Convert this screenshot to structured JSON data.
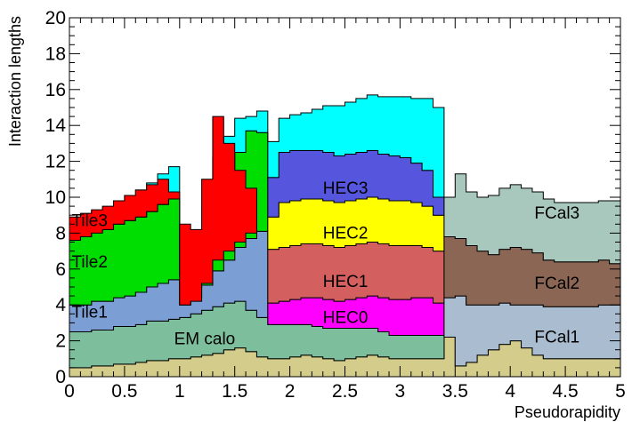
{
  "chart_data": {
    "type": "area",
    "title": "",
    "xlabel": "Pseudorapidity",
    "ylabel": "Interaction lengths",
    "xlim": [
      0,
      5
    ],
    "ylim": [
      0,
      20
    ],
    "x_ticks": [
      "0",
      "0.5",
      "1",
      "1.5",
      "2",
      "2.5",
      "3",
      "3.5",
      "4",
      "4.5",
      "5"
    ],
    "y_ticks": [
      "0",
      "2",
      "4",
      "6",
      "8",
      "10",
      "12",
      "14",
      "16",
      "18",
      "20"
    ],
    "grid": false,
    "legend": "none",
    "bin_width": 0.1,
    "series": [
      {
        "name": "Tile3",
        "color": "#ff0000",
        "base": [
          7.6,
          7.8,
          8.0,
          8.2,
          8.5,
          8.7,
          8.9,
          9.2,
          9.6,
          9.9,
          4.0,
          4.2,
          5.2,
          6.5,
          7.0,
          7.5,
          8.0,
          8.2,
          8.2,
          8.2,
          8.2,
          8.2,
          8.2,
          8.2,
          8.2,
          8.2,
          8.2,
          8.2,
          8.2,
          8.2,
          8.2,
          8.2,
          8.2,
          8.2,
          8.2,
          8.2,
          8.2,
          8.2,
          8.2,
          8.2,
          8.2,
          8.2,
          8.2,
          8.2,
          8.2,
          8.2,
          8.2,
          8.2,
          8.2,
          8.2
        ],
        "top": [
          8.9,
          9.1,
          9.3,
          9.5,
          9.8,
          10.1,
          10.4,
          10.7,
          11.0,
          10.3,
          8.5,
          8.2,
          11.0,
          14.5,
          13.0,
          11.5,
          10.5,
          8.2,
          8.2,
          8.2,
          8.2,
          8.2,
          8.2,
          8.2,
          8.2,
          8.2,
          8.2,
          8.2,
          8.2,
          8.2,
          8.2,
          8.2,
          8.2,
          8.2,
          8.2,
          8.2,
          8.2,
          8.2,
          8.2,
          8.2,
          8.2,
          8.2,
          8.2,
          8.2,
          8.2,
          8.2,
          8.2,
          8.2,
          8.2,
          8.2
        ]
      }
    ],
    "layers": [
      {
        "name": "",
        "color": "#d4cc8a",
        "values": [
          0.5,
          0.5,
          0.6,
          0.6,
          0.7,
          0.7,
          0.8,
          0.9,
          0.9,
          1.0,
          1.0,
          1.1,
          1.2,
          1.3,
          1.5,
          1.6,
          1.4,
          1.1,
          1.0,
          1.0,
          1.1,
          1.2,
          1.1,
          1.0,
          0.9,
          1.0,
          1.1,
          1.2,
          1.1,
          1.0,
          1.0,
          1.0,
          1.0,
          1.0,
          2.2,
          0.6,
          0.8,
          1.2,
          1.5,
          1.8,
          2.0,
          1.6,
          1.2,
          1.0,
          1.0,
          1.0,
          1.0,
          1.0,
          1.0,
          1.0
        ]
      },
      {
        "name": "EM calo",
        "color": "#7dbf9c",
        "values": [
          2.0,
          2.0,
          2.0,
          2.0,
          2.1,
          2.1,
          2.1,
          2.2,
          2.2,
          2.2,
          2.3,
          2.4,
          2.5,
          2.6,
          2.6,
          2.6,
          2.3,
          2.2,
          1.9,
          1.9,
          1.8,
          1.7,
          1.7,
          1.7,
          1.8,
          1.7,
          1.6,
          1.5,
          1.4,
          1.3,
          1.3,
          1.3,
          1.3,
          1.3,
          0.0,
          0.0,
          0.0,
          0.0,
          0.0,
          0.0,
          0.0,
          0.0,
          0.0,
          0.0,
          0.0,
          0.0,
          0.0,
          0.0,
          0.0,
          0.0
        ]
      },
      {
        "name": "Tile1",
        "color": "#7b9fd4",
        "values": [
          1.5,
          1.5,
          1.6,
          1.6,
          1.6,
          1.7,
          1.8,
          1.9,
          2.1,
          2.2,
          0.7,
          0.9,
          1.4,
          2.0,
          2.4,
          3.0,
          4.0,
          4.8,
          0.0,
          0.0,
          0.0,
          0.0,
          0.0,
          0.0,
          0.0,
          0.0,
          0.0,
          0.0,
          0.0,
          0.0,
          0.0,
          0.0,
          0.0,
          0.0,
          0.0,
          0.0,
          0.0,
          0.0,
          0.0,
          0.0,
          0.0,
          0.0,
          0.0,
          0.0,
          0.0,
          0.0,
          0.0,
          0.0,
          0.0,
          0.0
        ]
      },
      {
        "name": "Tile2",
        "color": "#00dd00",
        "values": [
          3.6,
          3.8,
          3.9,
          4.0,
          4.1,
          4.2,
          4.2,
          4.2,
          4.4,
          4.5,
          1.6,
          0.8,
          2.5,
          4.4,
          5.0,
          5.3,
          6.0,
          5.5,
          0.0,
          0.0,
          0.0,
          0.0,
          0.0,
          0.0,
          0.0,
          0.0,
          0.0,
          0.0,
          0.0,
          0.0,
          0.0,
          0.0,
          0.0,
          0.0,
          0.0,
          0.0,
          0.0,
          0.0,
          0.0,
          0.0,
          0.0,
          0.0,
          0.0,
          0.0,
          0.0,
          0.0,
          0.0,
          0.0,
          0.0,
          0.0
        ]
      },
      {
        "name": "HEC0",
        "color": "#ff00ff",
        "values": [
          0,
          0,
          0,
          0,
          0,
          0,
          0,
          0,
          0,
          0,
          0,
          0,
          0,
          0,
          0,
          0,
          0,
          0,
          1.2,
          1.3,
          1.4,
          1.5,
          1.6,
          1.6,
          1.5,
          1.6,
          1.7,
          1.8,
          1.9,
          2.0,
          2.0,
          2.1,
          2.1,
          1.8,
          0,
          0,
          0,
          0,
          0,
          0,
          0,
          0,
          0,
          0,
          0,
          0,
          0,
          0,
          0,
          0
        ]
      },
      {
        "name": "HEC1",
        "color": "#d45f5f",
        "values": [
          0,
          0,
          0,
          0,
          0,
          0,
          0,
          0,
          0,
          0,
          0,
          0,
          0,
          0,
          0,
          0,
          0,
          0,
          3.0,
          3.0,
          3.0,
          3.0,
          3.0,
          3.0,
          3.0,
          3.0,
          3.0,
          3.0,
          3.0,
          3.0,
          3.0,
          2.9,
          2.8,
          2.9,
          0,
          0,
          0,
          0,
          0,
          0,
          0,
          0,
          0,
          0,
          0,
          0,
          0,
          0,
          0,
          0
        ]
      },
      {
        "name": "HEC2",
        "color": "#ffff00",
        "values": [
          0,
          0,
          0,
          0,
          0,
          0,
          0,
          0,
          0,
          0,
          0,
          0,
          0,
          0,
          0,
          0,
          0,
          0,
          1.8,
          2.5,
          2.5,
          2.5,
          2.5,
          2.5,
          2.5,
          2.5,
          2.5,
          2.5,
          2.5,
          2.5,
          2.5,
          2.4,
          2.3,
          2.0,
          0,
          0,
          0,
          0,
          0,
          0,
          0,
          0,
          0,
          0,
          0,
          0,
          0,
          0,
          0,
          0
        ]
      },
      {
        "name": "HEC3",
        "color": "#5555dd",
        "values": [
          0,
          0,
          0,
          0,
          0,
          0,
          0,
          0,
          0,
          0,
          0,
          0,
          0,
          0,
          0,
          0,
          0,
          0,
          2.2,
          2.8,
          2.8,
          2.7,
          2.7,
          2.7,
          2.6,
          2.6,
          2.6,
          2.6,
          2.5,
          2.5,
          2.4,
          2.2,
          2.0,
          1.0,
          0,
          0,
          0,
          0,
          0,
          0,
          0,
          0,
          0,
          0,
          0,
          0,
          0,
          0,
          0,
          0
        ]
      },
      {
        "name": "FCal1",
        "color": "#aabdd0",
        "values": [
          0,
          0,
          0,
          0,
          0,
          0,
          0,
          0,
          0,
          0,
          0,
          0,
          0,
          0,
          0,
          0,
          0,
          0,
          0,
          0,
          0,
          0,
          0,
          0,
          0,
          0,
          0,
          0,
          0,
          0,
          0,
          0,
          0,
          0,
          2.2,
          3.9,
          3.2,
          2.8,
          2.5,
          2.3,
          2.0,
          2.4,
          2.8,
          2.9,
          2.9,
          2.9,
          2.9,
          2.9,
          3.0,
          3.0
        ]
      },
      {
        "name": "FCal2",
        "color": "#8b6655",
        "values": [
          0,
          0,
          0,
          0,
          0,
          0,
          0,
          0,
          0,
          0,
          0,
          0,
          0,
          0,
          0,
          0,
          0,
          0,
          0,
          0,
          0,
          0,
          0,
          0,
          0,
          0,
          0,
          0,
          0,
          0,
          0,
          0,
          0,
          0,
          3.4,
          3.2,
          3.3,
          3.0,
          2.8,
          3.0,
          3.2,
          3.1,
          2.9,
          2.6,
          2.5,
          2.5,
          2.5,
          2.5,
          2.5,
          2.3
        ]
      },
      {
        "name": "FCal3",
        "color": "#a9c8bd",
        "values": [
          0,
          0,
          0,
          0,
          0,
          0,
          0,
          0,
          0,
          0,
          0,
          0,
          0,
          0,
          0,
          0,
          0,
          0,
          0,
          0,
          0,
          0,
          0,
          0,
          0,
          0,
          0,
          0,
          0,
          0,
          0,
          0,
          0,
          0,
          2.2,
          3.6,
          3.0,
          3.0,
          3.3,
          3.4,
          3.5,
          3.4,
          3.4,
          3.4,
          3.3,
          3.3,
          3.3,
          3.3,
          3.3,
          3.5
        ]
      },
      {
        "name": "",
        "color": "#00ffff",
        "values": [
          1.0,
          1.1,
          1.1,
          1.2,
          1.3,
          1.4,
          1.5,
          1.6,
          1.7,
          1.8,
          1.9,
          2.0,
          1.9,
          1.9,
          1.9,
          1.9,
          0.8,
          1.2,
          2.0,
          1.9,
          2.0,
          2.1,
          2.3,
          2.6,
          2.8,
          2.9,
          3.0,
          3.1,
          3.2,
          3.3,
          3.4,
          3.6,
          4.0,
          5.0,
          0,
          0,
          0,
          0,
          0,
          0,
          0,
          0,
          0,
          0,
          0,
          0,
          0,
          0,
          0,
          0
        ]
      }
    ],
    "labels": [
      {
        "text": "Tile3",
        "x": 0.02,
        "y": 8.4
      },
      {
        "text": "Tile2",
        "x": 0.02,
        "y": 6.1
      },
      {
        "text": "Tile1",
        "x": 0.02,
        "y": 3.3
      },
      {
        "text": "EM calo",
        "x": 0.95,
        "y": 1.8
      },
      {
        "text": "HEC3",
        "x": 2.3,
        "y": 10.2
      },
      {
        "text": "HEC2",
        "x": 2.3,
        "y": 7.7
      },
      {
        "text": "HEC1",
        "x": 2.3,
        "y": 5.0
      },
      {
        "text": "HEC0",
        "x": 2.3,
        "y": 3.0
      },
      {
        "text": "FCal3",
        "x": 4.22,
        "y": 8.8
      },
      {
        "text": "FCal2",
        "x": 4.22,
        "y": 4.9
      },
      {
        "text": "FCal1",
        "x": 4.22,
        "y": 1.9
      }
    ]
  }
}
